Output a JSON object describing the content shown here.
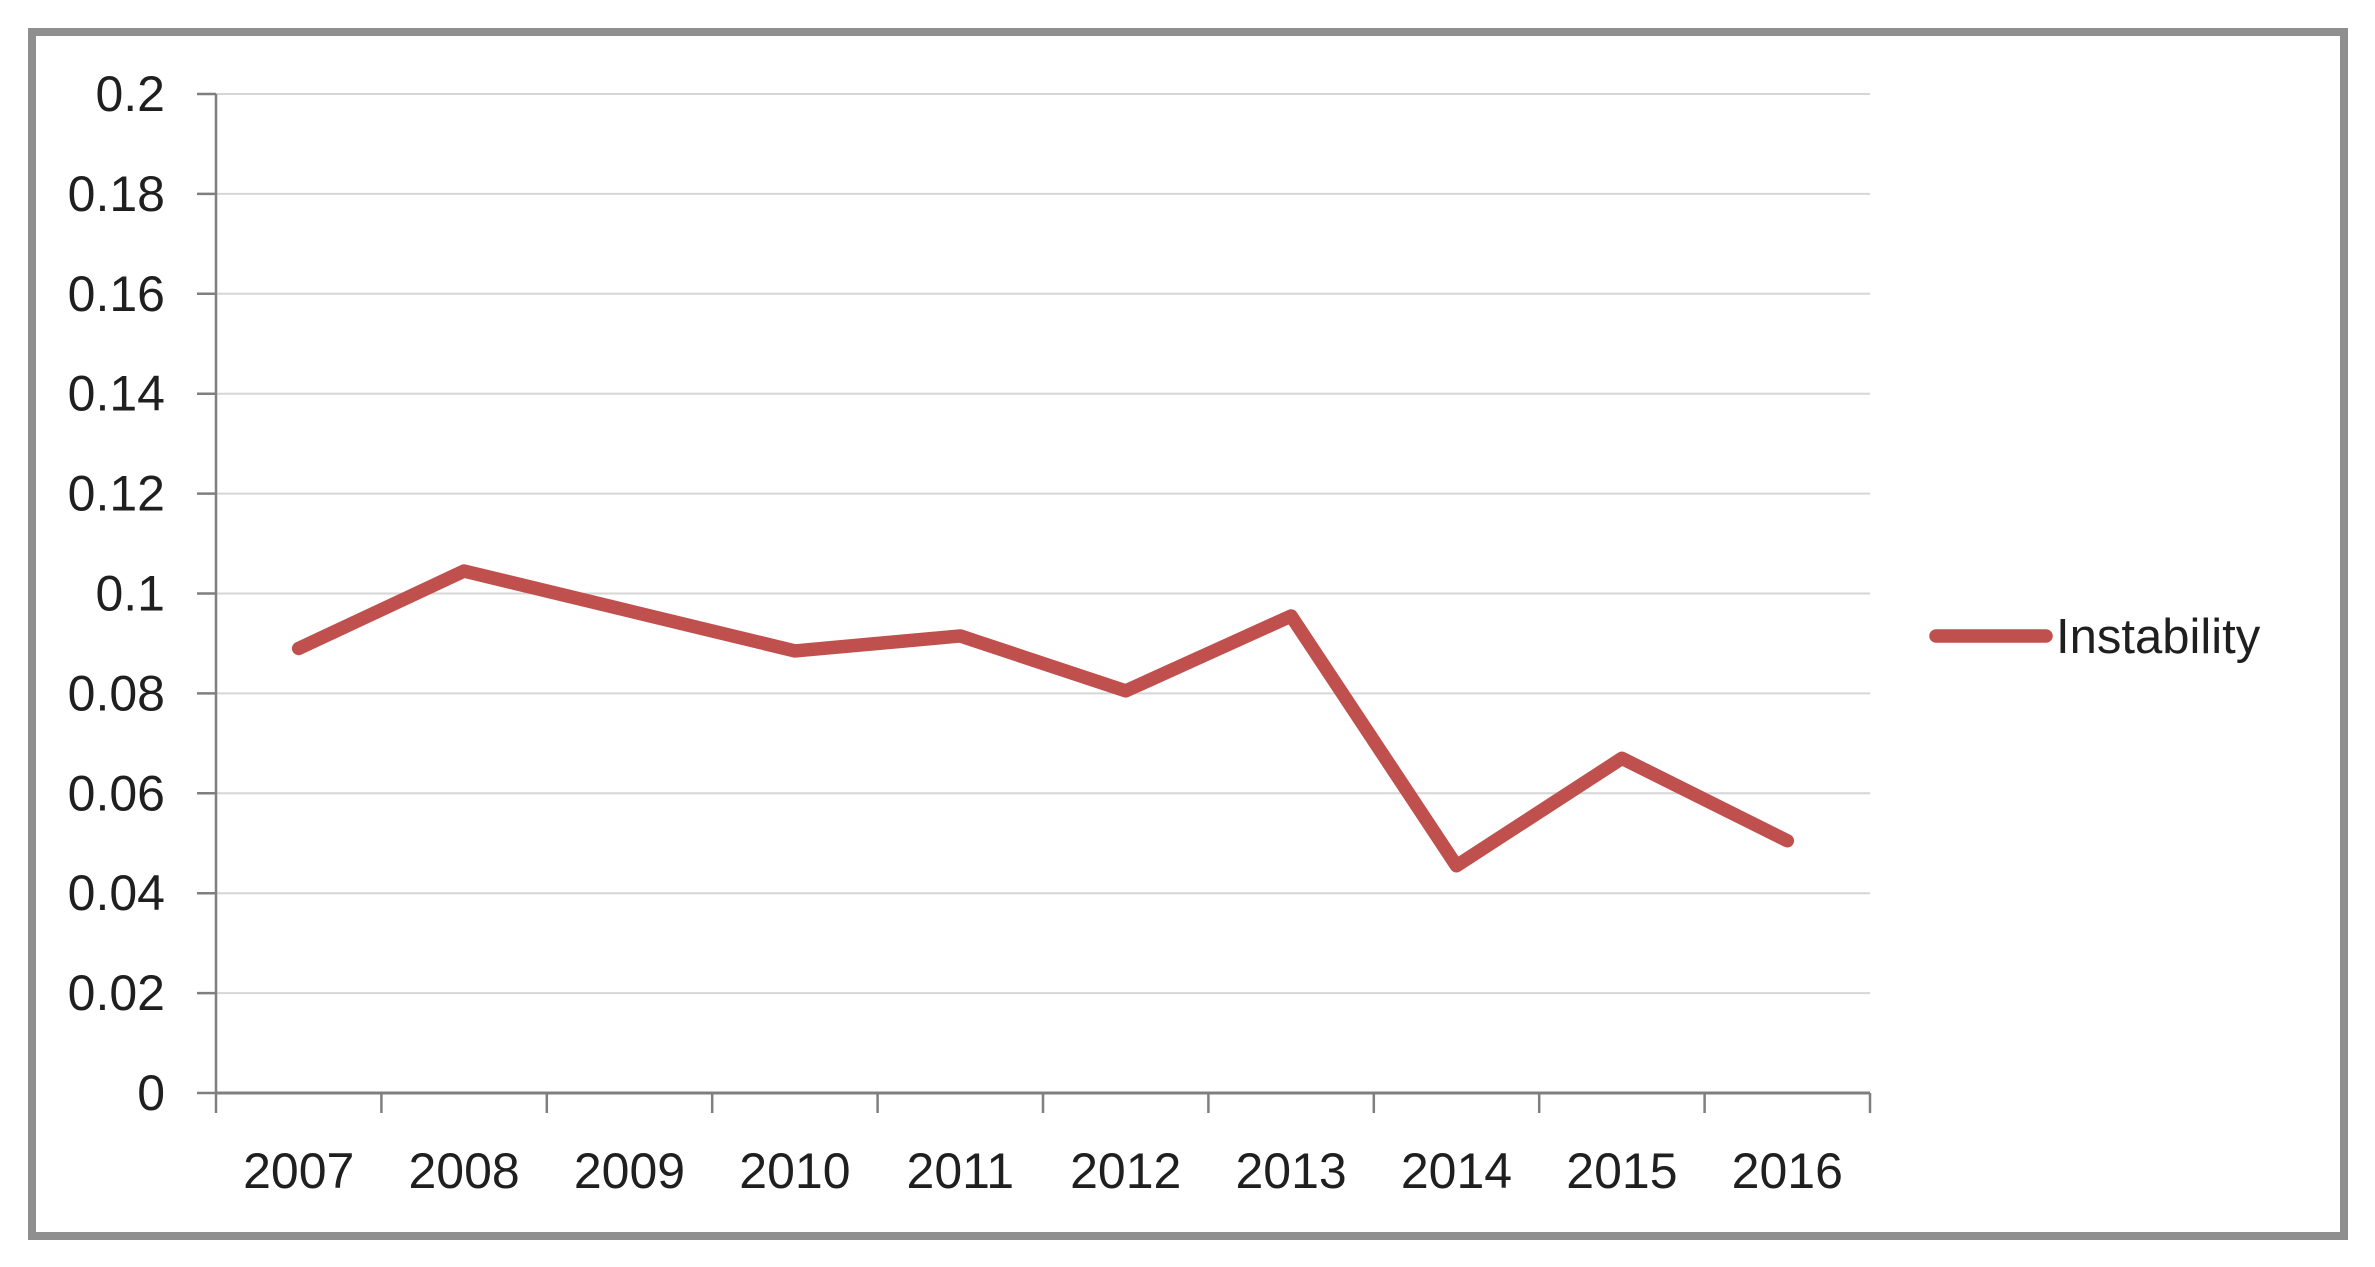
{
  "colors": {
    "series": "#C0504D",
    "gridline": "#D6D6D6",
    "axis": "#7F7F7F",
    "text": "#1F1F1F",
    "border": "#8F8F8F",
    "background": "#FFFFFF"
  },
  "chart_data": {
    "type": "line",
    "title": "",
    "xlabel": "",
    "ylabel": "",
    "categories": [
      "2007",
      "2008",
      "2009",
      "2010",
      "2011",
      "2012",
      "2013",
      "2014",
      "2015",
      "2016"
    ],
    "series": [
      {
        "name": "Instability",
        "color": "#C0504D",
        "values": [
          0.089,
          0.1045,
          0.0965,
          0.0885,
          0.0915,
          0.0805,
          0.0955,
          0.0455,
          0.067,
          0.0505
        ]
      }
    ],
    "ylim": [
      0,
      0.2
    ],
    "ytick_step": 0.02,
    "ytick_labels": [
      "0",
      "0.02",
      "0.04",
      "0.06",
      "0.08",
      "0.1",
      "0.12",
      "0.14",
      "0.16",
      "0.18",
      "0.2"
    ],
    "grid": "horizontal",
    "legend": {
      "position": "right",
      "entries": [
        "Instability"
      ]
    }
  }
}
